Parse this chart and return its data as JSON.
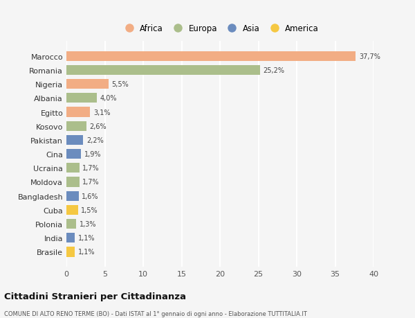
{
  "countries": [
    "Marocco",
    "Romania",
    "Nigeria",
    "Albania",
    "Egitto",
    "Kosovo",
    "Pakistan",
    "Cina",
    "Ucraina",
    "Moldova",
    "Bangladesh",
    "Cuba",
    "Polonia",
    "India",
    "Brasile"
  ],
  "values": [
    37.7,
    25.2,
    5.5,
    4.0,
    3.1,
    2.6,
    2.2,
    1.9,
    1.7,
    1.7,
    1.6,
    1.5,
    1.3,
    1.1,
    1.1
  ],
  "labels": [
    "37,7%",
    "25,2%",
    "5,5%",
    "4,0%",
    "3,1%",
    "2,6%",
    "2,2%",
    "1,9%",
    "1,7%",
    "1,7%",
    "1,6%",
    "1,5%",
    "1,3%",
    "1,1%",
    "1,1%"
  ],
  "continents": [
    "Africa",
    "Europa",
    "Africa",
    "Europa",
    "Africa",
    "Europa",
    "Asia",
    "Asia",
    "Europa",
    "Europa",
    "Asia",
    "America",
    "Europa",
    "Asia",
    "America"
  ],
  "continent_colors": {
    "Africa": "#F2AD84",
    "Europa": "#ABBE8B",
    "Asia": "#6B8CBE",
    "America": "#F5C842"
  },
  "legend_order": [
    "Africa",
    "Europa",
    "Asia",
    "America"
  ],
  "xlim": [
    0,
    40
  ],
  "xticks": [
    0,
    5,
    10,
    15,
    20,
    25,
    30,
    35,
    40
  ],
  "title": "Cittadini Stranieri per Cittadinanza",
  "subtitle": "COMUNE DI ALTO RENO TERME (BO) - Dati ISTAT al 1° gennaio di ogni anno - Elaborazione TUTTITALIA.IT",
  "background_color": "#f5f5f5",
  "grid_color": "#ffffff",
  "bar_height": 0.7
}
